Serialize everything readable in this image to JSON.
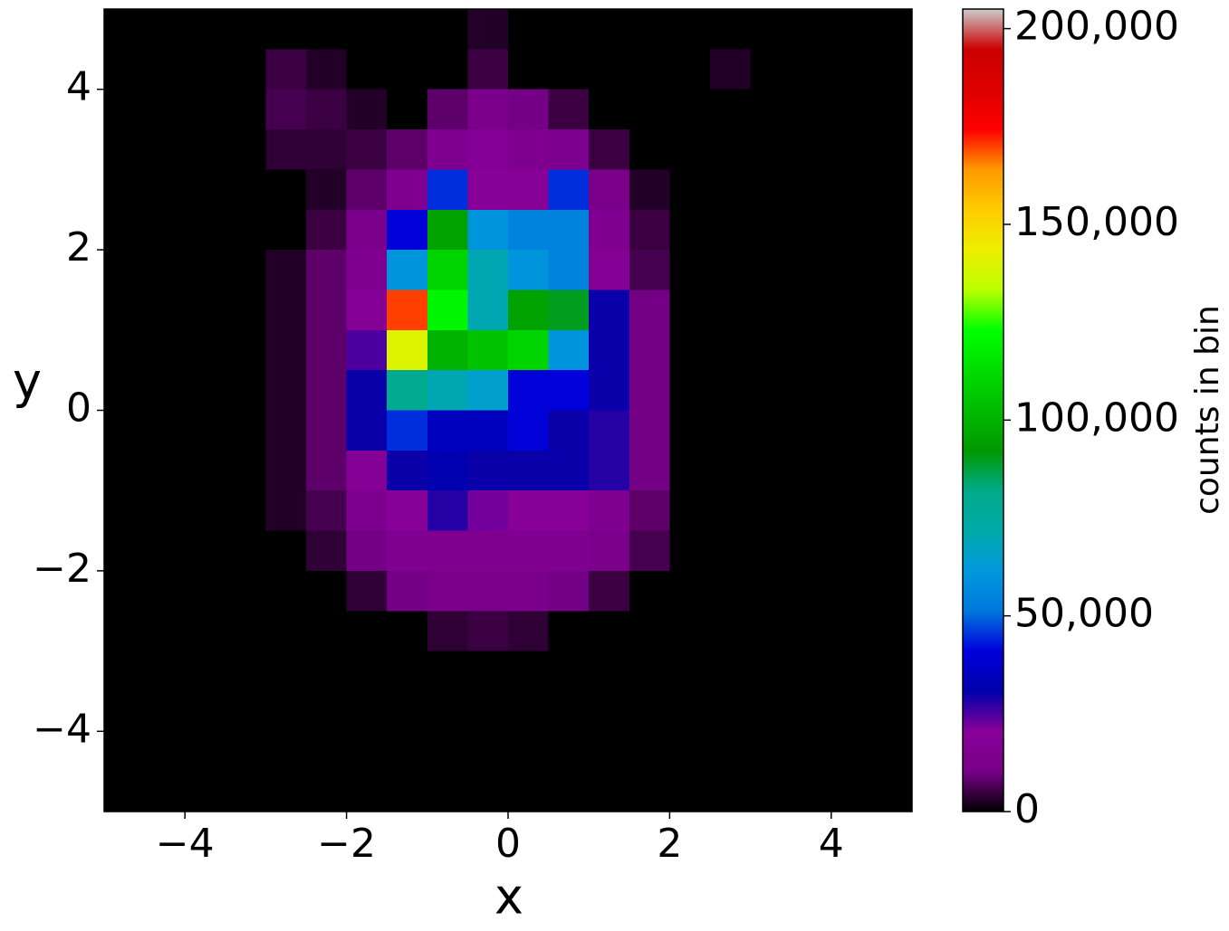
{
  "chart_data": {
    "type": "heatmap",
    "xlabel": "x",
    "ylabel": "y",
    "colorbar_label": "counts in bin",
    "xlim": [
      -5,
      5
    ],
    "ylim": [
      -5,
      5
    ],
    "xticks": [
      {
        "value": -4,
        "label": "−4"
      },
      {
        "value": -2,
        "label": "−2"
      },
      0,
      2,
      4
    ],
    "yticks": [
      {
        "value": -4,
        "label": "−4"
      },
      {
        "value": -2,
        "label": "−2"
      },
      0,
      2,
      4
    ],
    "clim": [
      0,
      205000
    ],
    "cticks": [
      0,
      {
        "value": 50000,
        "label": "50,000"
      },
      {
        "value": 100000,
        "label": "100,000"
      },
      {
        "value": 150000,
        "label": "150,000"
      },
      {
        "value": 200000,
        "label": "200,000"
      }
    ],
    "colormap": [
      "#000000",
      "#770088",
      "#880099",
      "#0000aa",
      "#0000dd",
      "#0077dd",
      "#0099dd",
      "#00aaaa",
      "#00aa88",
      "#009900",
      "#00bb00",
      "#00dd00",
      "#00ff00",
      "#bbff00",
      "#eeee00",
      "#ffcc00",
      "#ff9900",
      "#ff0000",
      "#dd0000",
      "#cc0000",
      "#cccccc"
    ],
    "xbins": [
      -5,
      -4.5,
      -4,
      -3.5,
      -3,
      -2.5,
      -2,
      -1.5,
      -1,
      -0.5,
      0,
      0.5,
      1,
      1.5,
      2,
      2.5,
      3,
      3.5,
      4,
      4.5,
      5
    ],
    "ybins": [
      5,
      4.5,
      4,
      3.5,
      3,
      2.5,
      2,
      1.5,
      1,
      0.5,
      0,
      -0.5,
      -1,
      -1.5,
      -2,
      -2.5,
      -3,
      -3.5,
      -4,
      -4.5,
      -5
    ],
    "z": [
      [
        0,
        0,
        0,
        0,
        0,
        0,
        0,
        0,
        0,
        3000,
        0,
        0,
        0,
        0,
        0,
        0,
        0,
        0,
        0,
        0
      ],
      [
        0,
        0,
        0,
        0,
        5000,
        3000,
        0,
        0,
        0,
        5000,
        0,
        0,
        0,
        0,
        0,
        3000,
        0,
        0,
        0,
        0
      ],
      [
        0,
        0,
        0,
        0,
        6000,
        5000,
        3000,
        0,
        8000,
        12000,
        10000,
        5000,
        0,
        0,
        0,
        0,
        0,
        0,
        0,
        0
      ],
      [
        0,
        0,
        0,
        0,
        4000,
        4000,
        5000,
        8000,
        15000,
        18000,
        15000,
        14000,
        5000,
        0,
        0,
        0,
        0,
        0,
        0,
        0
      ],
      [
        0,
        0,
        0,
        0,
        0,
        3000,
        8000,
        15000,
        45000,
        20000,
        20000,
        45000,
        12000,
        3000,
        0,
        0,
        0,
        0,
        0,
        0
      ],
      [
        0,
        0,
        0,
        0,
        0,
        5000,
        12000,
        40000,
        95000,
        60000,
        55000,
        55000,
        15000,
        5000,
        0,
        0,
        0,
        0,
        0,
        0
      ],
      [
        0,
        0,
        0,
        0,
        3000,
        8000,
        15000,
        60000,
        110000,
        70000,
        60000,
        55000,
        18000,
        6000,
        0,
        0,
        0,
        0,
        0,
        0
      ],
      [
        0,
        0,
        0,
        0,
        3000,
        8000,
        18000,
        170000,
        120000,
        70000,
        95000,
        90000,
        30000,
        10000,
        0,
        0,
        0,
        0,
        0,
        0
      ],
      [
        0,
        0,
        0,
        0,
        3000,
        8000,
        25000,
        140000,
        100000,
        105000,
        110000,
        60000,
        30000,
        10000,
        0,
        0,
        0,
        0,
        0,
        0
      ],
      [
        0,
        0,
        0,
        0,
        3000,
        8000,
        30000,
        80000,
        70000,
        65000,
        40000,
        40000,
        30000,
        10000,
        0,
        0,
        0,
        0,
        0,
        0
      ],
      [
        0,
        0,
        0,
        0,
        3000,
        8000,
        30000,
        45000,
        35000,
        35000,
        40000,
        30000,
        28000,
        10000,
        0,
        0,
        0,
        0,
        0,
        0
      ],
      [
        0,
        0,
        0,
        0,
        3000,
        8000,
        18000,
        30000,
        32000,
        30000,
        30000,
        30000,
        28000,
        10000,
        0,
        0,
        0,
        0,
        0,
        0
      ],
      [
        0,
        0,
        0,
        0,
        3000,
        6000,
        14000,
        20000,
        28000,
        22000,
        20000,
        20000,
        15000,
        8000,
        0,
        0,
        0,
        0,
        0,
        0
      ],
      [
        0,
        0,
        0,
        0,
        0,
        4000,
        10000,
        15000,
        15000,
        15000,
        15000,
        15000,
        12000,
        6000,
        0,
        0,
        0,
        0,
        0,
        0
      ],
      [
        0,
        0,
        0,
        0,
        0,
        0,
        4000,
        10000,
        12000,
        12000,
        12000,
        10000,
        5000,
        0,
        0,
        0,
        0,
        0,
        0,
        0
      ],
      [
        0,
        0,
        0,
        0,
        0,
        0,
        0,
        0,
        4000,
        5000,
        4000,
        0,
        0,
        0,
        0,
        0,
        0,
        0,
        0,
        0
      ],
      [
        0,
        0,
        0,
        0,
        0,
        0,
        0,
        0,
        0,
        0,
        0,
        0,
        0,
        0,
        0,
        0,
        0,
        0,
        0,
        0
      ],
      [
        0,
        0,
        0,
        0,
        0,
        0,
        0,
        0,
        0,
        0,
        0,
        0,
        0,
        0,
        0,
        0,
        0,
        0,
        0,
        0
      ],
      [
        0,
        0,
        0,
        0,
        0,
        0,
        0,
        0,
        0,
        0,
        0,
        0,
        0,
        0,
        0,
        0,
        0,
        0,
        0,
        0
      ],
      [
        0,
        0,
        0,
        0,
        0,
        0,
        0,
        0,
        0,
        0,
        0,
        0,
        0,
        0,
        0,
        0,
        0,
        0,
        0,
        0
      ]
    ]
  }
}
